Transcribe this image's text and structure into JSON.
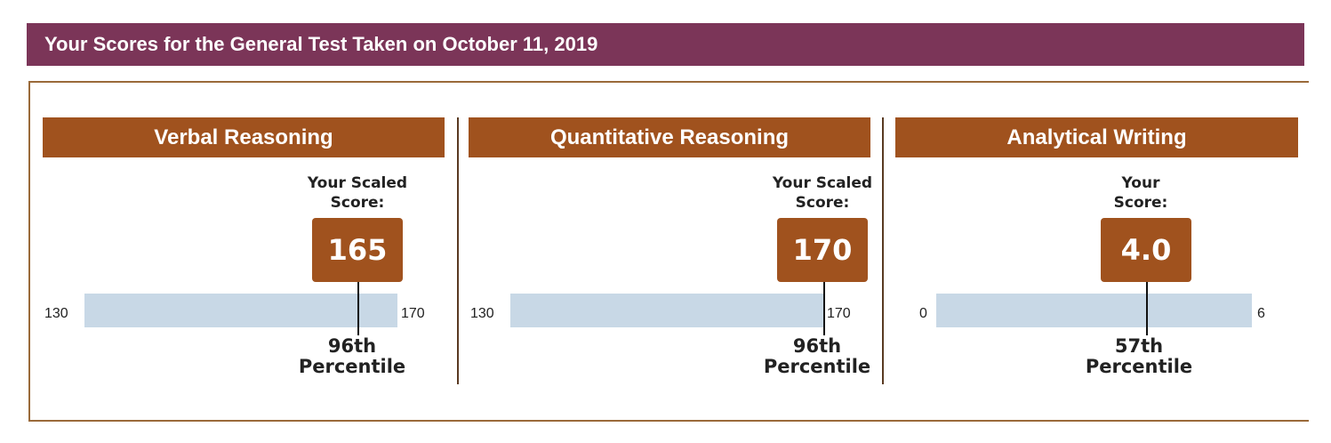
{
  "header": {
    "title": "Your Scores for the General Test Taken on October 11, 2019"
  },
  "sections": [
    {
      "name": "Verbal Reasoning",
      "score_caption_line1": "Your Scaled",
      "score_caption_line2": "Score:",
      "score": "165",
      "scale_min": "130",
      "scale_max": "170",
      "percentile_line1": "96th",
      "percentile_line2": "Percentile"
    },
    {
      "name": "Quantitative Reasoning",
      "score_caption_line1": "Your Scaled",
      "score_caption_line2": "Score:",
      "score": "170",
      "scale_min": "130",
      "scale_max": "170",
      "percentile_line1": "96th",
      "percentile_line2": "Percentile"
    },
    {
      "name": "Analytical Writing",
      "score_caption_line1": "Your",
      "score_caption_line2": "Score:",
      "score": "4.0",
      "scale_min": "0",
      "scale_max": "6",
      "percentile_line1": "57th",
      "percentile_line2": "Percentile"
    }
  ],
  "colors": {
    "title_bar": "#7b3558",
    "section_header": "#a0521e",
    "score_box": "#a0521e",
    "scale_bar": "#c8d8e6"
  }
}
